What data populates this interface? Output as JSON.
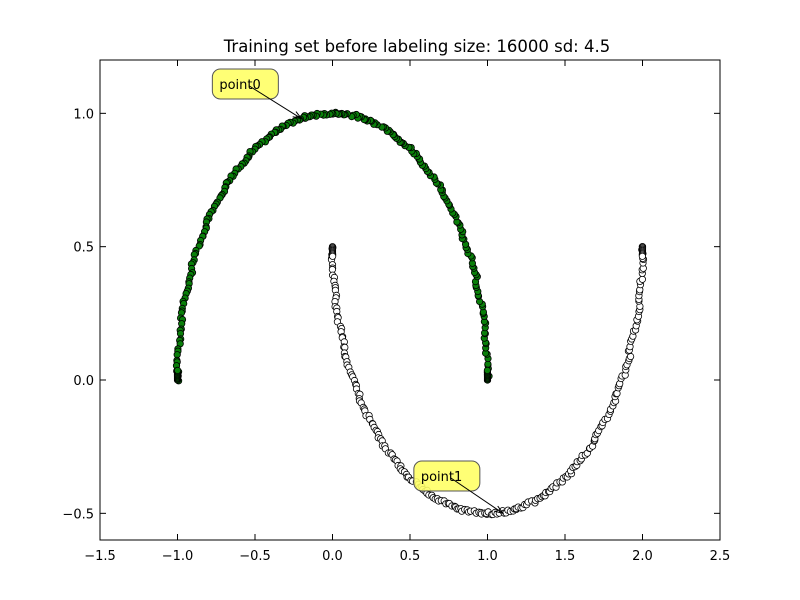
{
  "chart_data": {
    "type": "scatter",
    "title": "Training set before labeling size: 16000 sd: 4.5",
    "xlabel": "",
    "ylabel": "",
    "xlim": [
      -1.5,
      2.5
    ],
    "ylim": [
      -0.6,
      1.2
    ],
    "x_ticks": [
      -1.5,
      -1.0,
      -0.5,
      0.0,
      0.5,
      1.0,
      1.5,
      2.0,
      2.5
    ],
    "x_tick_labels": [
      "−1.5",
      "−1.0",
      "−0.5",
      "0.0",
      "0.5",
      "1.0",
      "1.5",
      "2.0",
      "2.5"
    ],
    "y_ticks": [
      -0.5,
      0.0,
      0.5,
      1.0
    ],
    "y_tick_labels": [
      "−0.5",
      "0.0",
      "0.5",
      "1.0"
    ],
    "grid": false,
    "legend": "none",
    "series": [
      {
        "shape": "upper half circle",
        "center": [
          0.0,
          0.0
        ],
        "radius": 1.0,
        "angle_range_deg": [
          0,
          180
        ],
        "marker": "circle",
        "color": "#0a7f0a",
        "edgecolor": "#000000"
      },
      {
        "shape": "lower half circle",
        "center": [
          1.0,
          0.5
        ],
        "radius": 1.0,
        "angle_range_deg": [
          180,
          360
        ],
        "marker": "circle",
        "color": "#ffffff",
        "edgecolor": "#000000"
      }
    ],
    "annotations": [
      {
        "text": "point0",
        "point": [
          -0.2,
          0.98
        ],
        "text_pos": [
          -0.73,
          1.11
        ],
        "box_color": "#ffff66"
      },
      {
        "text": "point1",
        "point": [
          1.1,
          -0.5
        ],
        "text_pos": [
          0.57,
          -0.36
        ],
        "box_color": "#ffff66"
      }
    ]
  }
}
